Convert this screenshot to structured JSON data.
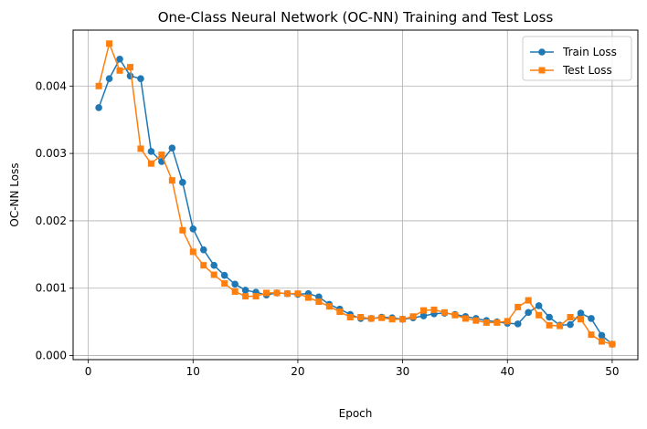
{
  "chart_data": {
    "type": "line",
    "title": "One-Class Neural Network (OC-NN) Training and Test Loss",
    "xlabel": "Epoch",
    "ylabel": "OC-NN Loss",
    "xlim": [
      -1.45,
      52.45
    ],
    "ylim": [
      -6e-05,
      0.00483
    ],
    "x_ticks": [
      0,
      10,
      20,
      30,
      40,
      50
    ],
    "y_ticks": [
      0.0,
      0.001,
      0.002,
      0.003,
      0.004
    ],
    "y_tick_labels": [
      "0.000",
      "0.001",
      "0.002",
      "0.003",
      "0.004"
    ],
    "grid": true,
    "legend_position": "top-right",
    "x": [
      1,
      2,
      3,
      4,
      5,
      6,
      7,
      8,
      9,
      10,
      11,
      12,
      13,
      14,
      15,
      16,
      17,
      18,
      19,
      20,
      21,
      22,
      23,
      24,
      25,
      26,
      27,
      28,
      29,
      30,
      31,
      32,
      33,
      34,
      35,
      36,
      37,
      38,
      39,
      40,
      41,
      42,
      43,
      44,
      45,
      46,
      47,
      48,
      49,
      50
    ],
    "series": [
      {
        "name": "Train Loss",
        "color": "#1f77b4",
        "marker": "circle",
        "values": [
          0.00368,
          0.00411,
          0.0044,
          0.00415,
          0.00411,
          0.00303,
          0.00288,
          0.00308,
          0.00257,
          0.00188,
          0.00157,
          0.00134,
          0.00119,
          0.00106,
          0.00097,
          0.00094,
          0.0009,
          0.00093,
          0.00092,
          0.00091,
          0.00092,
          0.00087,
          0.00076,
          0.00069,
          0.00061,
          0.00055,
          0.00055,
          0.00057,
          0.00056,
          0.00054,
          0.00056,
          0.00059,
          0.00062,
          0.00063,
          0.00061,
          0.00058,
          0.00055,
          0.00052,
          0.0005,
          0.00048,
          0.00047,
          0.00064,
          0.00074,
          0.00057,
          0.00045,
          0.00046,
          0.00063,
          0.00055,
          0.0003,
          0.00017
        ]
      },
      {
        "name": "Test Loss",
        "color": "#ff7f0e",
        "marker": "square",
        "values": [
          0.004,
          0.00463,
          0.00423,
          0.00428,
          0.00307,
          0.00285,
          0.00298,
          0.0026,
          0.00186,
          0.00154,
          0.00134,
          0.0012,
          0.00107,
          0.00095,
          0.00088,
          0.00088,
          0.00093,
          0.00093,
          0.00092,
          0.00092,
          0.00086,
          0.0008,
          0.00073,
          0.00065,
          0.00057,
          0.00057,
          0.00055,
          0.00056,
          0.00054,
          0.00054,
          0.00058,
          0.00067,
          0.00068,
          0.00064,
          0.0006,
          0.00055,
          0.00052,
          0.00049,
          0.00049,
          0.00051,
          0.00072,
          0.00082,
          0.0006,
          0.00045,
          0.00044,
          0.00057,
          0.00054,
          0.00031,
          0.00021,
          0.00017
        ]
      }
    ]
  }
}
